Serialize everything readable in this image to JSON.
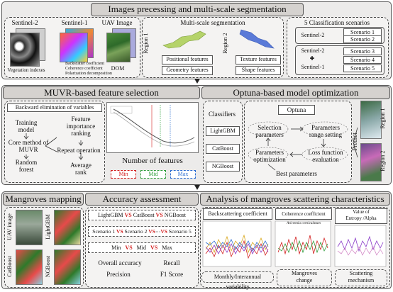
{
  "sec1": {
    "title": "Images precessing and multi-scale segmentation",
    "sentinel2": "Sentinel-2",
    "sentinel1": "Sentinel-1",
    "uav": "UAV Image",
    "veg": "Vegetation indexes",
    "s1feat": [
      "Backscatter coefficient",
      "Coherence coefficient",
      "Polarization decomposition"
    ],
    "dom": "DOM",
    "seg_title": "Multi-scale segmentation",
    "region1": "Region 1",
    "region2": "Region 2",
    "pos": "Positional features",
    "geo": "Geometry features",
    "tex": "Texture features",
    "shape": "Shape features",
    "cls_title": "5 Classification scenarios",
    "cls_s2": "Sentinel-2",
    "cls_s2b": "Sentinel-2",
    "cls_s1": "Sentinel-1",
    "scenarios": [
      "Scenario 1",
      "Scenario 2",
      "Scenario 3",
      "Scenario 4",
      "Scenario 5"
    ]
  },
  "sec2": {
    "left_title": "MUVR-based feature selection",
    "right_title": "Optuna-based model optimization",
    "backward": "Backward elimination of variables",
    "training": "Training\nmodel",
    "core": "Core method of\nMUVR",
    "rf": "Random\nforest",
    "fir": "Feature\nimportance\nranking",
    "repeat": "Repeat operation",
    "avg": "Average\nrank",
    "nfeat": "Number of features",
    "min": "Min",
    "mid": "Mid",
    "max": "Max",
    "classifiers": "Classifiers",
    "clf": [
      "LightGBM",
      "CatBoost",
      "NGBoost"
    ],
    "optuna": "Optuna",
    "sel": "Selection\nparameters",
    "range": "Parameters\nrange setting",
    "popt": "Parameters\noptimization",
    "loss": "Loss function\nevaluation",
    "best": "Best parameters",
    "predict": "Predict",
    "region1": "Region 1",
    "region2": "Region 2"
  },
  "sec3": {
    "map_title": "Mangroves  mapping",
    "acc_title": "Accuracy assessment",
    "scat_title": "Analysis of mangroves scattering characteristics",
    "uav": "UAV image",
    "lgb": "LightGBM",
    "cat": "CatBoost",
    "ngb": "NGBoost",
    "row1": [
      "LightGBM",
      "VS",
      "CatBoost",
      "VS",
      "NGBoost"
    ],
    "row2": [
      "Scenario 1",
      "VS",
      "Scenario 2",
      "VS",
      "⋯",
      "VS",
      "Scenario 5"
    ],
    "row3": [
      "Min",
      "VS",
      "Mid",
      "VS",
      "Max"
    ],
    "oa": "Overall accuracy",
    "recall": "Recall",
    "precision": "Precision",
    "f1": "F1 Score",
    "backscatter": "Backscattering coefficient",
    "coherence": "Coherence coefficient",
    "entropy": "Value of\nEntropy /Alpha",
    "monthly": "Monthly/Interannual variability",
    "mchange": "Mangroves\nchange",
    "mech": "Scattering\nmechanism",
    "coh_plot_title": "Avicennia corniculatum"
  },
  "colors": {
    "min": "#d21e1e",
    "mid": "#2e9d3a",
    "max": "#2e6ed1",
    "section_bg": "#ecebea",
    "header_bg": "#d5d2cf"
  }
}
